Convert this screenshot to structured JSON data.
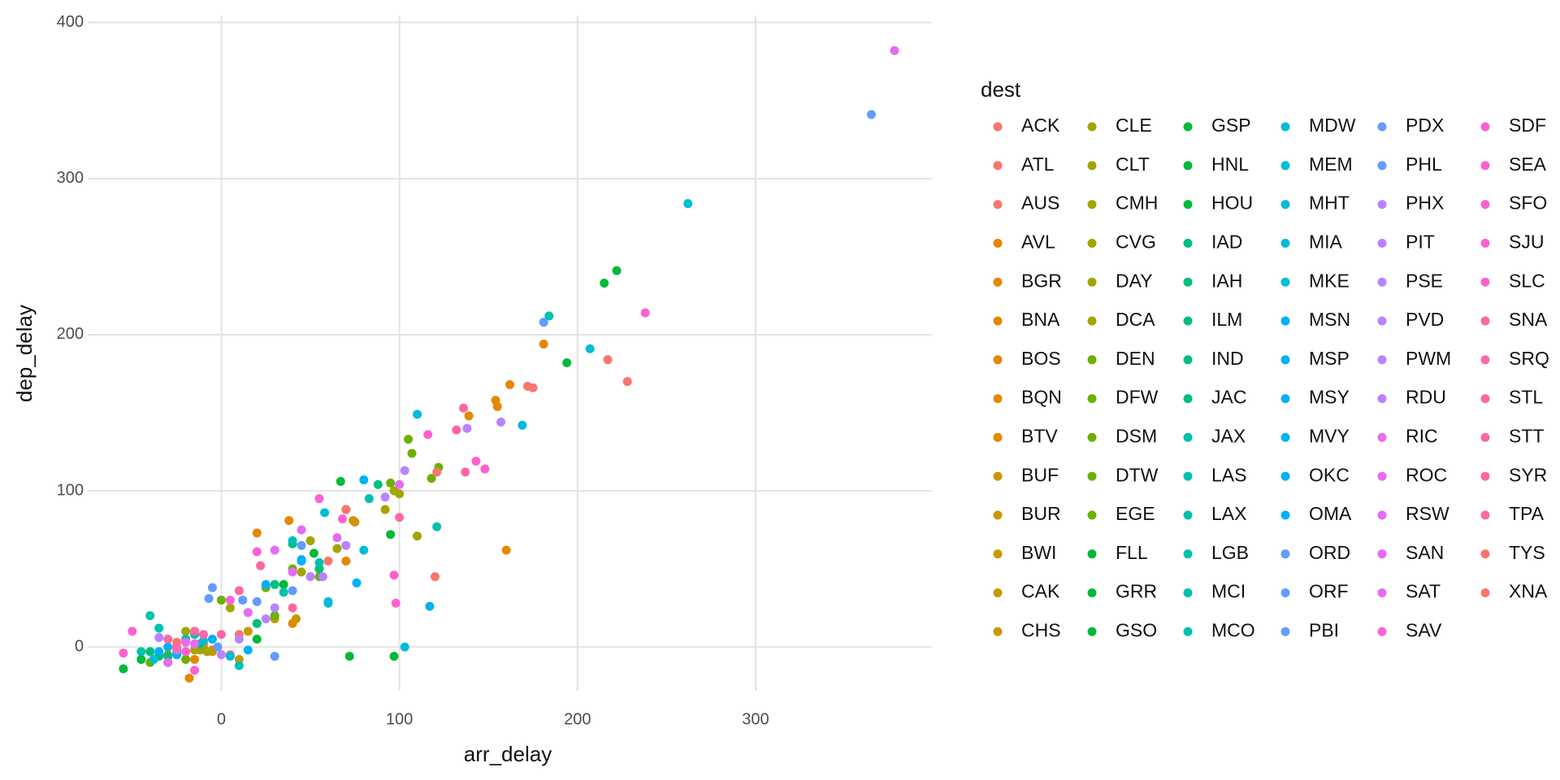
{
  "chart_data": {
    "type": "scatter",
    "x_label": "arr_delay",
    "y_label": "dep_delay",
    "legend_title": "dest",
    "xlim": [
      -75,
      399
    ],
    "ylim": [
      -28,
      404
    ],
    "xticks": [
      0,
      100,
      200,
      300
    ],
    "yticks": [
      0,
      100,
      200,
      300,
      400
    ],
    "grid": true,
    "legend_position": "right",
    "series": [
      {
        "name": "ACK",
        "color": "#F8766D",
        "x": [
          -10,
          5
        ],
        "values": [
          2,
          -5
        ]
      },
      {
        "name": "ATL",
        "color": "#F8766D",
        "x": [
          217,
          30,
          -20,
          60
        ],
        "values": [
          184,
          20,
          -3,
          55
        ]
      },
      {
        "name": "AUS",
        "color": "#F8766D",
        "x": [
          175,
          10,
          -25
        ],
        "values": [
          166,
          8,
          3
        ]
      },
      {
        "name": "AVL",
        "color": "#E58700",
        "x": [
          -15,
          20
        ],
        "values": [
          -8,
          73
        ]
      },
      {
        "name": "BGR",
        "color": "#E58700",
        "x": [
          160,
          -18
        ],
        "values": [
          62,
          -20
        ]
      },
      {
        "name": "BNA",
        "color": "#E58700",
        "x": [
          154,
          40,
          -5
        ],
        "values": [
          158,
          15,
          -2
        ]
      },
      {
        "name": "BOS",
        "color": "#E58700",
        "x": [
          181,
          162,
          70
        ],
        "values": [
          194,
          168,
          55
        ]
      },
      {
        "name": "BQN",
        "color": "#E58700",
        "x": [
          155,
          75
        ],
        "values": [
          154,
          80
        ]
      },
      {
        "name": "BTV",
        "color": "#E58700",
        "x": [
          139,
          38
        ],
        "values": [
          148,
          81
        ]
      },
      {
        "name": "BUF",
        "color": "#C99800",
        "x": [
          70,
          -20
        ],
        "values": [
          88,
          5
        ]
      },
      {
        "name": "BUR",
        "color": "#C99800",
        "x": [
          74,
          10
        ],
        "values": [
          81,
          -8
        ]
      },
      {
        "name": "BWI",
        "color": "#C99800",
        "x": [
          -5,
          30
        ],
        "values": [
          -3,
          18
        ]
      },
      {
        "name": "CAK",
        "color": "#C99800",
        "x": [
          15,
          -30
        ],
        "values": [
          10,
          -5
        ]
      },
      {
        "name": "CHS",
        "color": "#C99800",
        "x": [
          42,
          -10
        ],
        "values": [
          18,
          0
        ]
      },
      {
        "name": "CLE",
        "color": "#A3A500",
        "x": [
          110,
          50
        ],
        "values": [
          71,
          68
        ]
      },
      {
        "name": "CLT",
        "color": "#A3A500",
        "x": [
          100,
          -8,
          20
        ],
        "values": [
          98,
          -3,
          15
        ]
      },
      {
        "name": "CMH",
        "color": "#A3A500",
        "x": [
          92,
          -12
        ],
        "values": [
          88,
          -2
        ]
      },
      {
        "name": "CVG",
        "color": "#A3A500",
        "x": [
          97,
          5
        ],
        "values": [
          100,
          25
        ]
      },
      {
        "name": "DAY",
        "color": "#A3A500",
        "x": [
          45,
          -20
        ],
        "values": [
          48,
          10
        ]
      },
      {
        "name": "DCA",
        "color": "#A3A500",
        "x": [
          65,
          -15
        ],
        "values": [
          63,
          -2
        ]
      },
      {
        "name": "DEN",
        "color": "#6BB100",
        "x": [
          105,
          40,
          -35
        ],
        "values": [
          133,
          50,
          -5
        ]
      },
      {
        "name": "DFW",
        "color": "#6BB100",
        "x": [
          95,
          0,
          30
        ],
        "values": [
          105,
          30,
          20
        ]
      },
      {
        "name": "DSM",
        "color": "#6BB100",
        "x": [
          118,
          55
        ],
        "values": [
          108,
          45
        ]
      },
      {
        "name": "DTW",
        "color": "#6BB100",
        "x": [
          107,
          25,
          -20
        ],
        "values": [
          124,
          38,
          -8
        ]
      },
      {
        "name": "EGE",
        "color": "#6BB100",
        "x": [
          122,
          -40
        ],
        "values": [
          115,
          -10
        ]
      },
      {
        "name": "FLL",
        "color": "#00BA38",
        "x": [
          97,
          -45,
          35
        ],
        "values": [
          -6,
          -8,
          40
        ]
      },
      {
        "name": "GRR",
        "color": "#00BA38",
        "x": [
          72,
          -30
        ],
        "values": [
          -6,
          -10
        ]
      },
      {
        "name": "GSO",
        "color": "#00BA38",
        "x": [
          215,
          -55,
          55
        ],
        "values": [
          233,
          -14,
          50
        ]
      },
      {
        "name": "GSP",
        "color": "#00BA38",
        "x": [
          194,
          52
        ],
        "values": [
          182,
          60
        ]
      },
      {
        "name": "HNL",
        "color": "#00BA38",
        "x": [
          222,
          95
        ],
        "values": [
          241,
          72
        ]
      },
      {
        "name": "HOU",
        "color": "#00BA38",
        "x": [
          67,
          20
        ],
        "values": [
          106,
          5
        ]
      },
      {
        "name": "IAD",
        "color": "#00BF7D",
        "x": [
          55,
          -25
        ],
        "values": [
          50,
          -4
        ]
      },
      {
        "name": "IAH",
        "color": "#00BF7D",
        "x": [
          88,
          -35
        ],
        "values": [
          104,
          -6
        ]
      },
      {
        "name": "ILM",
        "color": "#00BF7D",
        "x": [
          30,
          -12
        ],
        "values": [
          40,
          2
        ]
      },
      {
        "name": "IND",
        "color": "#00BF7D",
        "x": [
          40,
          -30
        ],
        "values": [
          66,
          -6
        ]
      },
      {
        "name": "JAC",
        "color": "#00BF7D",
        "x": [
          20,
          -40
        ],
        "values": [
          15,
          -3
        ]
      },
      {
        "name": "JAX",
        "color": "#00C0AF",
        "x": [
          -40,
          35
        ],
        "values": [
          20,
          35
        ]
      },
      {
        "name": "LAS",
        "color": "#00C0AF",
        "x": [
          83,
          -15
        ],
        "values": [
          95,
          8
        ]
      },
      {
        "name": "LAX",
        "color": "#00C0AF",
        "x": [
          121,
          40
        ],
        "values": [
          77,
          68
        ]
      },
      {
        "name": "LGB",
        "color": "#00C0AF",
        "x": [
          -20,
          55
        ],
        "values": [
          5,
          54
        ]
      },
      {
        "name": "MCI",
        "color": "#00C0AF",
        "x": [
          -45,
          60
        ],
        "values": [
          -3,
          28
        ]
      },
      {
        "name": "MCO",
        "color": "#00C0AF",
        "x": [
          184,
          -35,
          10
        ],
        "values": [
          212,
          12,
          -12
        ]
      },
      {
        "name": "MDW",
        "color": "#00BCD8",
        "x": [
          262,
          110,
          -38
        ],
        "values": [
          284,
          149,
          -8
        ]
      },
      {
        "name": "MEM",
        "color": "#00BCD8",
        "x": [
          207,
          169,
          80
        ],
        "values": [
          191,
          142,
          62
        ]
      },
      {
        "name": "MHT",
        "color": "#00BCD8",
        "x": [
          103,
          -25
        ],
        "values": [
          0,
          -2
        ]
      },
      {
        "name": "MIA",
        "color": "#00BCD8",
        "x": [
          60,
          -10
        ],
        "values": [
          29,
          4
        ]
      },
      {
        "name": "MKE",
        "color": "#00BCD8",
        "x": [
          58,
          5
        ],
        "values": [
          86,
          -6
        ]
      },
      {
        "name": "MSN",
        "color": "#00B0F6",
        "x": [
          -30,
          45
        ],
        "values": [
          0,
          56
        ]
      },
      {
        "name": "MSP",
        "color": "#00B0F6",
        "x": [
          117,
          80
        ],
        "values": [
          26,
          107
        ]
      },
      {
        "name": "MSY",
        "color": "#00B0F6",
        "x": [
          45,
          -15
        ],
        "values": [
          55,
          10
        ]
      },
      {
        "name": "MVY",
        "color": "#00B0F6",
        "x": [
          76,
          -35
        ],
        "values": [
          41,
          -3
        ]
      },
      {
        "name": "OKC",
        "color": "#00B0F6",
        "x": [
          25,
          -5
        ],
        "values": [
          40,
          5
        ]
      },
      {
        "name": "OMA",
        "color": "#00B0F6",
        "x": [
          -25,
          15
        ],
        "values": [
          -5,
          -2
        ]
      },
      {
        "name": "ORD",
        "color": "#619CFF",
        "x": [
          40,
          -2
        ],
        "values": [
          36,
          0
        ]
      },
      {
        "name": "ORF",
        "color": "#619CFF",
        "x": [
          -5,
          20
        ],
        "values": [
          38,
          29
        ]
      },
      {
        "name": "PBI",
        "color": "#619CFF",
        "x": [
          -7,
          30
        ],
        "values": [
          31,
          -6
        ]
      },
      {
        "name": "PDX",
        "color": "#619CFF",
        "x": [
          365,
          181,
          12
        ],
        "values": [
          341,
          208,
          30
        ]
      },
      {
        "name": "PHL",
        "color": "#619CFF",
        "x": [
          45,
          -15
        ],
        "values": [
          65,
          10
        ]
      },
      {
        "name": "PHX",
        "color": "#B983FF",
        "x": [
          157,
          25
        ],
        "values": [
          144,
          18
        ]
      },
      {
        "name": "PIT",
        "color": "#B983FF",
        "x": [
          103,
          50,
          -25
        ],
        "values": [
          113,
          45,
          -2
        ]
      },
      {
        "name": "PSE",
        "color": "#B983FF",
        "x": [
          10,
          -35
        ],
        "values": [
          5,
          6
        ]
      },
      {
        "name": "PVD",
        "color": "#B983FF",
        "x": [
          138,
          70
        ],
        "values": [
          140,
          65
        ]
      },
      {
        "name": "PWM",
        "color": "#B983FF",
        "x": [
          92,
          30
        ],
        "values": [
          96,
          25
        ]
      },
      {
        "name": "RDU",
        "color": "#B983FF",
        "x": [
          57,
          0
        ],
        "values": [
          45,
          -5
        ]
      },
      {
        "name": "RIC",
        "color": "#E76BF3",
        "x": [
          100,
          -15
        ],
        "values": [
          104,
          2
        ]
      },
      {
        "name": "ROC",
        "color": "#E76BF3",
        "x": [
          15,
          65
        ],
        "values": [
          22,
          70
        ]
      },
      {
        "name": "RSW",
        "color": "#E76BF3",
        "x": [
          45,
          -20
        ],
        "values": [
          75,
          3
        ]
      },
      {
        "name": "SAN",
        "color": "#E76BF3",
        "x": [
          30,
          -30
        ],
        "values": [
          62,
          -10
        ]
      },
      {
        "name": "SAT",
        "color": "#E76BF3",
        "x": [
          378,
          40
        ],
        "values": [
          382,
          48
        ]
      },
      {
        "name": "SAV",
        "color": "#FD61D1",
        "x": [
          5,
          -15
        ],
        "values": [
          30,
          -15
        ]
      },
      {
        "name": "SDF",
        "color": "#FD61D1",
        "x": [
          -50,
          -20
        ],
        "values": [
          10,
          -3
        ]
      },
      {
        "name": "SEA",
        "color": "#FD61D1",
        "x": [
          143,
          68
        ],
        "values": [
          119,
          82
        ]
      },
      {
        "name": "SFO",
        "color": "#FD61D1",
        "x": [
          238,
          116,
          97
        ],
        "values": [
          214,
          136,
          46
        ]
      },
      {
        "name": "SJU",
        "color": "#FD61D1",
        "x": [
          148,
          98,
          -55
        ],
        "values": [
          114,
          28,
          -4
        ]
      },
      {
        "name": "SLC",
        "color": "#FD61D1",
        "x": [
          20,
          55
        ],
        "values": [
          61,
          95
        ]
      },
      {
        "name": "SNA",
        "color": "#FF67A4",
        "x": [
          132,
          22
        ],
        "values": [
          139,
          52
        ]
      },
      {
        "name": "SRQ",
        "color": "#FF67A4",
        "x": [
          137,
          0
        ],
        "values": [
          112,
          8
        ]
      },
      {
        "name": "STL",
        "color": "#FF67A4",
        "x": [
          -10,
          40
        ],
        "values": [
          8,
          25
        ]
      },
      {
        "name": "STT",
        "color": "#FF67A4",
        "x": [
          10,
          -25
        ],
        "values": [
          36,
          0
        ]
      },
      {
        "name": "SYR",
        "color": "#FF67A4",
        "x": [
          100,
          -30
        ],
        "values": [
          83,
          5
        ]
      },
      {
        "name": "TPA",
        "color": "#FF67A4",
        "x": [
          136,
          -15
        ],
        "values": [
          153,
          10
        ]
      },
      {
        "name": "TYS",
        "color": "#F8766D",
        "x": [
          172,
          120,
          70
        ],
        "values": [
          167,
          45,
          88
        ]
      },
      {
        "name": "XNA",
        "color": "#F8766D",
        "x": [
          228,
          121
        ],
        "values": [
          170,
          112
        ]
      }
    ]
  }
}
